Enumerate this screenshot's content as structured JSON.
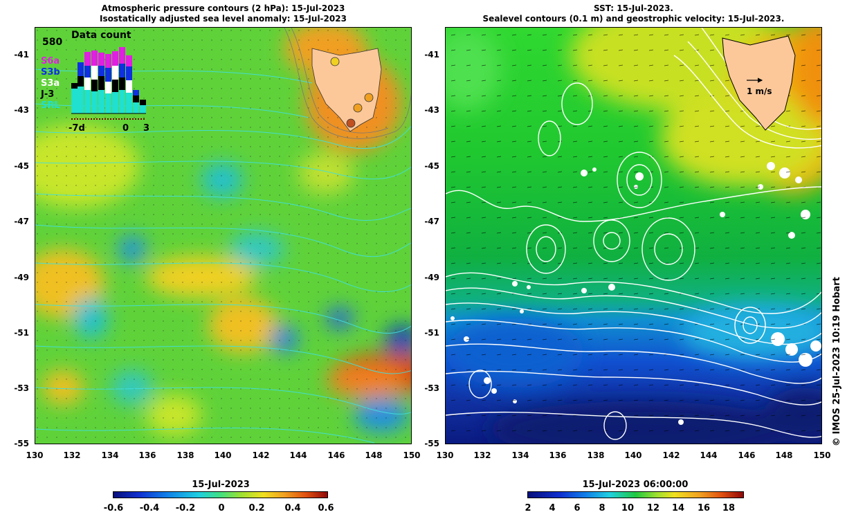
{
  "left_panel": {
    "title_line1": "Atmospheric pressure contours (2 hPa): 15-Jul-2023",
    "title_line2": "Isostatically adjusted sea level anomaly: 15-Jul-2023",
    "inset": {
      "label": "Data count",
      "max_count": "580",
      "satellites": [
        {
          "name": "S6a",
          "color": "#e020e0"
        },
        {
          "name": "S3b",
          "color": "#1030e0"
        },
        {
          "name": "S3a",
          "color": "#ffffff"
        },
        {
          "name": "J-3",
          "color": "#000000"
        },
        {
          "name": "SRL",
          "color": "#20e0d0"
        }
      ],
      "day_labels": [
        "-7d",
        "0",
        "3"
      ]
    }
  },
  "right_panel": {
    "title_line1": "SST: 15-Jul-2023.",
    "title_line2": "Sealevel contours (0.1 m) and geostrophic velocity: 15-Jul-2023.",
    "velocity_scale_label": "1 m/s"
  },
  "axes": {
    "y_labels": [
      "-41",
      "-43",
      "-45",
      "-47",
      "-49",
      "-51",
      "-53",
      "-55"
    ],
    "x_labels": [
      "130",
      "132",
      "134",
      "136",
      "138",
      "140",
      "142",
      "144",
      "146",
      "148",
      "150"
    ]
  },
  "colorbar_left": {
    "title": "15-Jul-2023",
    "ticks": [
      "-0.6",
      "-0.4",
      "-0.2",
      "0",
      "0.2",
      "0.4",
      "0.6"
    ]
  },
  "colorbar_right": {
    "title": "15-Jul-2023 06:00:00",
    "ticks": [
      "2",
      "4",
      "6",
      "8",
      "10",
      "12",
      "14",
      "16",
      "18"
    ]
  },
  "credit": "© IMOS 25-Jul-2023 10:19 Hobart",
  "colors": {
    "land": "#fcc89a",
    "contour_left": "#40e0e0",
    "contour_right": "#ffffff"
  }
}
